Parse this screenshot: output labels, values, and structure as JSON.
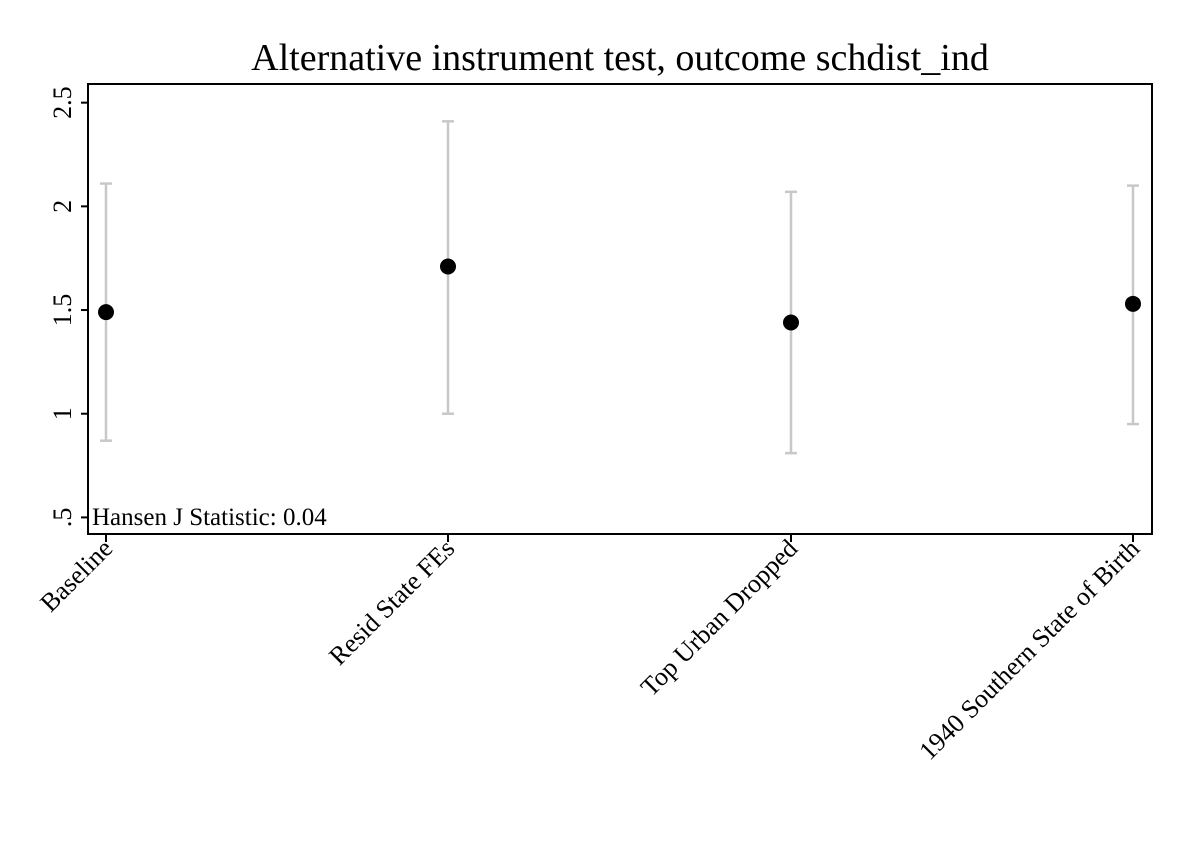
{
  "chart_data": {
    "type": "scatter",
    "title": "Alternative instrument test, outcome schdist_ind",
    "xlabel": "",
    "ylabel": "",
    "categories": [
      "Baseline",
      "Resid State FEs",
      "Top Urban Dropped",
      "1940 Southern State of Birth"
    ],
    "series": [
      {
        "values": [
          1.49,
          1.71,
          1.44,
          1.53
        ],
        "ci_lower": [
          0.87,
          1.0,
          0.81,
          0.95
        ],
        "ci_upper": [
          2.11,
          2.41,
          2.07,
          2.1
        ]
      }
    ],
    "ylim": [
      0.42,
      2.59
    ],
    "yticks": [
      0.5,
      1,
      1.5,
      2,
      2.5
    ],
    "ytick_labels": [
      ".5",
      "1",
      "1.5",
      "2",
      "2.5"
    ],
    "annotations": [
      "Hansen J Statistic: 0.04"
    ],
    "grid": false,
    "legend": "none",
    "colors": {
      "point": "#000000",
      "error_bar": "#c8c8c8",
      "axis": "#000000",
      "background": "#ffffff"
    }
  }
}
